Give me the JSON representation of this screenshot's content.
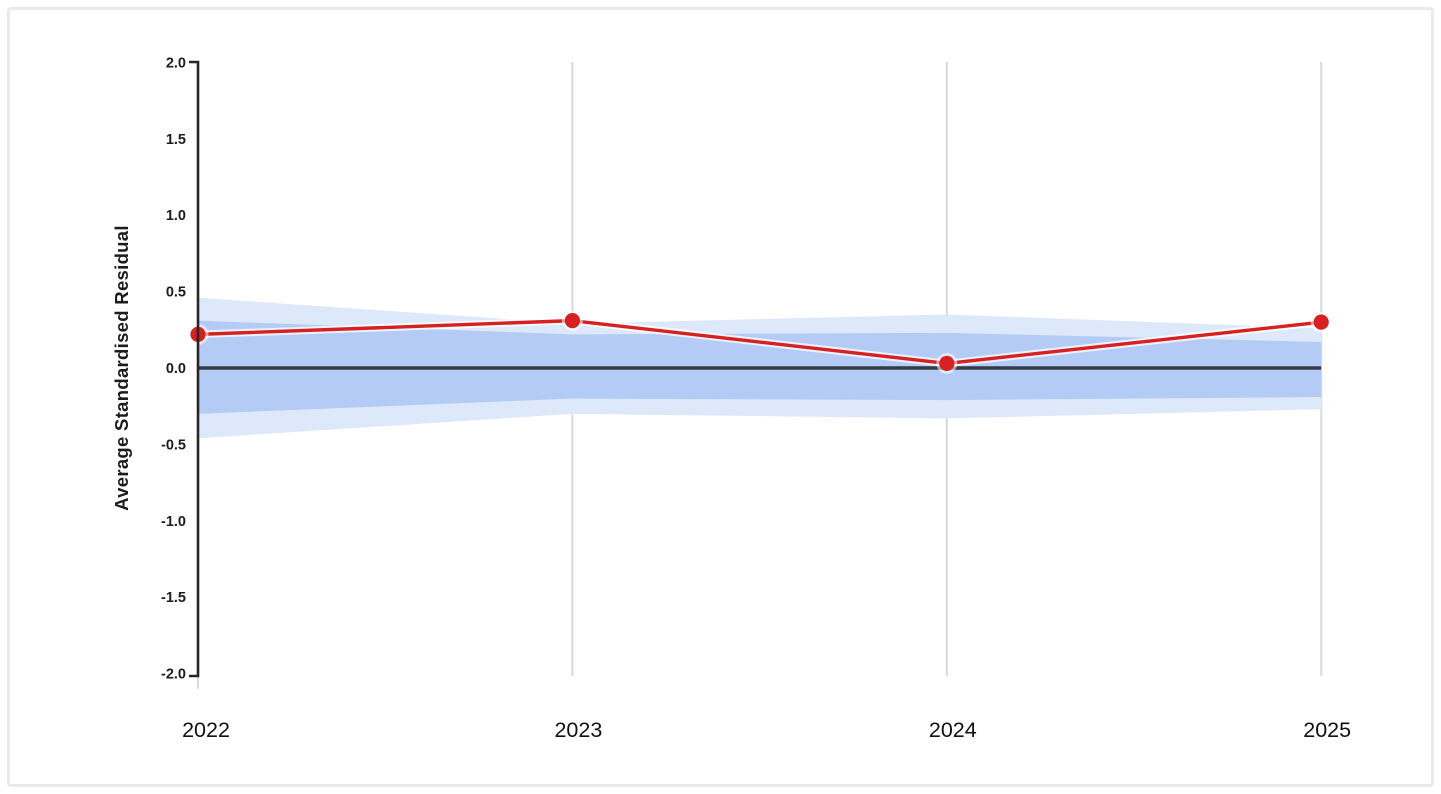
{
  "chart_data": {
    "type": "line",
    "title": "",
    "xlabel": "",
    "ylabel": "Average Standardised Residual",
    "x": [
      2022,
      2023,
      2024,
      2025
    ],
    "x_tick_labels": [
      "2022",
      "2023",
      "2024",
      "2025"
    ],
    "y_ticks": [
      "2.0",
      "1.5",
      "1.0",
      "0.5",
      "0.0",
      "-0.5",
      "-1.0",
      "-1.5",
      "-2.0"
    ],
    "ylim": [
      -2.0,
      2.0
    ],
    "grid": "vertical-only",
    "legend": "none",
    "series": [
      {
        "name": "average-standardised-residual",
        "color": "#d62120",
        "marker": "circle",
        "values": [
          0.22,
          0.31,
          0.03,
          0.3
        ]
      }
    ],
    "bands": [
      {
        "name": "outer-control-band",
        "color": "#dee8fb",
        "upper": [
          0.46,
          0.29,
          0.35,
          0.26
        ],
        "lower": [
          -0.46,
          -0.3,
          -0.33,
          -0.27
        ]
      },
      {
        "name": "inner-control-band",
        "color": "#b3cbf5",
        "upper": [
          0.31,
          0.22,
          0.23,
          0.17
        ],
        "lower": [
          -0.3,
          -0.2,
          -0.21,
          -0.19
        ]
      }
    ],
    "zero_line": {
      "value": 0,
      "color": "#333b44"
    },
    "colors": {
      "gridline": "#d9d9d9",
      "axis": "#262626",
      "card_border": "#eaeaea"
    }
  }
}
